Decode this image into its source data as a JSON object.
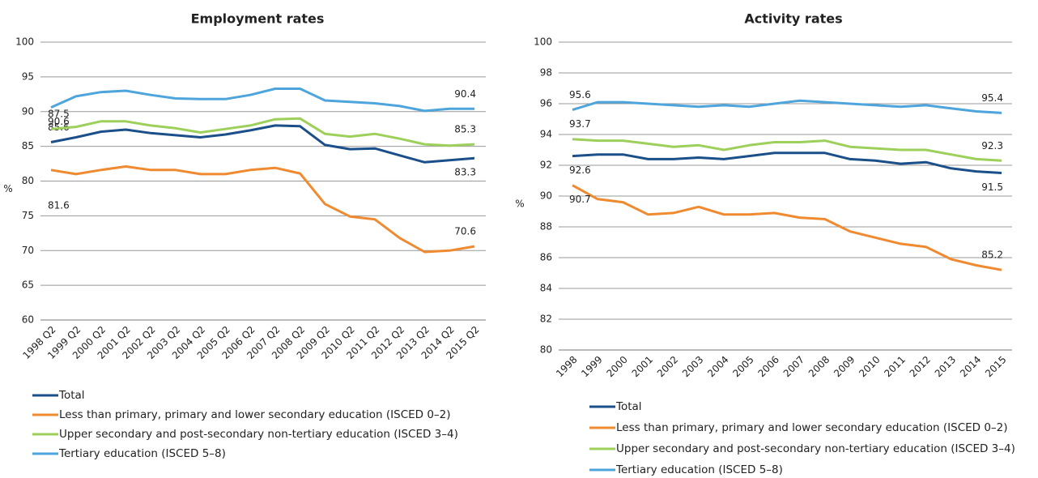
{
  "chart_data": [
    {
      "type": "line",
      "title": "Employment rates",
      "y_label": "%",
      "categories": [
        "1998 Q2",
        "1999 Q2",
        "2000 Q2",
        "2001 Q2",
        "2002 Q2",
        "2003 Q2",
        "2004 Q2",
        "2005 Q2",
        "2006 Q2",
        "2007 Q2",
        "2008 Q2",
        "2009 Q2",
        "2010 Q2",
        "2011 Q2",
        "2012 Q2",
        "2013 Q2",
        "2014 Q2",
        "2015 Q2"
      ],
      "series": [
        {
          "name": "Total",
          "color": "#1b4f8a",
          "values": [
            85.6,
            86.3,
            87.1,
            87.4,
            86.9,
            86.6,
            86.3,
            86.7,
            87.3,
            88.0,
            87.9,
            85.2,
            84.6,
            84.7,
            83.7,
            82.7,
            83.0,
            83.3
          ]
        },
        {
          "name": "Less than primary, primary and lower secondary education (ISCED  0–2)",
          "color": "#f08a30",
          "values": [
            81.6,
            81.0,
            81.6,
            82.1,
            81.6,
            81.6,
            81.0,
            81.0,
            81.6,
            81.9,
            81.1,
            76.7,
            74.9,
            74.5,
            71.8,
            69.8,
            70.0,
            70.6
          ]
        },
        {
          "name": "Upper secondary and post-secondary non-tertiary education (ISCED 3–4)",
          "color": "#9dd05a",
          "values": [
            87.5,
            87.8,
            88.6,
            88.6,
            88.0,
            87.6,
            87.0,
            87.5,
            88.0,
            88.9,
            89.0,
            86.8,
            86.4,
            86.8,
            86.1,
            85.3,
            85.1,
            85.3
          ]
        },
        {
          "name": "Tertiary education (ISCED 5–8)",
          "color": "#4da5dc",
          "values": [
            90.6,
            92.2,
            92.8,
            93.0,
            92.4,
            91.9,
            91.8,
            91.8,
            92.4,
            93.3,
            93.3,
            91.6,
            91.4,
            91.2,
            90.8,
            90.1,
            90.4,
            90.4
          ]
        }
      ],
      "ylim": [
        60,
        100
      ],
      "yticks": [
        60,
        65,
        70,
        75,
        80,
        85,
        90,
        95,
        100
      ],
      "grid": true
    },
    {
      "type": "line",
      "title": "Activity rates",
      "y_label": "%",
      "categories": [
        "1998",
        "1999",
        "2000",
        "2001",
        "2002",
        "2003",
        "2004",
        "2005",
        "2006",
        "2007",
        "2008",
        "2009",
        "2010",
        "2011",
        "2012",
        "2013",
        "2014",
        "2015"
      ],
      "series": [
        {
          "name": "Total",
          "color": "#1b4f8a",
          "values": [
            92.6,
            92.7,
            92.7,
            92.4,
            92.4,
            92.5,
            92.4,
            92.6,
            92.8,
            92.8,
            92.8,
            92.4,
            92.3,
            92.1,
            92.2,
            91.8,
            91.6,
            91.5
          ]
        },
        {
          "name": "Less than primary, primary and lower secondary education (ISCED  0–2)",
          "color": "#f08a30",
          "values": [
            90.7,
            89.8,
            89.6,
            88.8,
            88.9,
            89.3,
            88.8,
            88.8,
            88.9,
            88.6,
            88.5,
            87.7,
            87.3,
            86.9,
            86.7,
            85.9,
            85.5,
            85.2
          ]
        },
        {
          "name": "Upper secondary and post-secondary non-tertiary education (ISCED 3–4)",
          "color": "#9dd05a",
          "values": [
            93.7,
            93.6,
            93.6,
            93.4,
            93.2,
            93.3,
            93.0,
            93.3,
            93.5,
            93.5,
            93.6,
            93.2,
            93.1,
            93.0,
            93.0,
            92.7,
            92.4,
            92.3
          ]
        },
        {
          "name": "Tertiary education (ISCED 5–8)",
          "color": "#4da5dc",
          "values": [
            95.6,
            96.1,
            96.1,
            96.0,
            95.9,
            95.8,
            95.9,
            95.8,
            96.0,
            96.2,
            96.1,
            96.0,
            95.9,
            95.8,
            95.9,
            95.7,
            95.5,
            95.4
          ]
        }
      ],
      "ylim": [
        80,
        100
      ],
      "yticks": [
        80,
        82,
        84,
        86,
        88,
        90,
        92,
        94,
        96,
        98,
        100
      ],
      "grid": true
    }
  ]
}
